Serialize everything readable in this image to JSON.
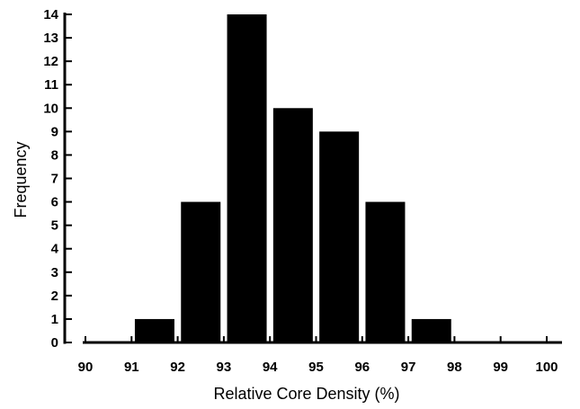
{
  "chart_data": {
    "type": "bar",
    "title": "",
    "xlabel": "Relative Core Density (%)",
    "ylabel": "Frequency",
    "x_ticks": [
      90,
      91,
      92,
      93,
      94,
      95,
      96,
      97,
      98,
      99,
      100
    ],
    "y_ticks": [
      0,
      1,
      2,
      3,
      4,
      5,
      6,
      7,
      8,
      9,
      10,
      11,
      12,
      13,
      14
    ],
    "categories": [
      "91",
      "92",
      "93",
      "94",
      "95",
      "96",
      "97"
    ],
    "values": [
      1,
      6,
      14,
      10,
      9,
      6,
      1
    ],
    "xlim": [
      90,
      100
    ],
    "ylim": [
      0,
      14
    ],
    "bar_color": "#000000",
    "grid": false,
    "legend": "none"
  }
}
